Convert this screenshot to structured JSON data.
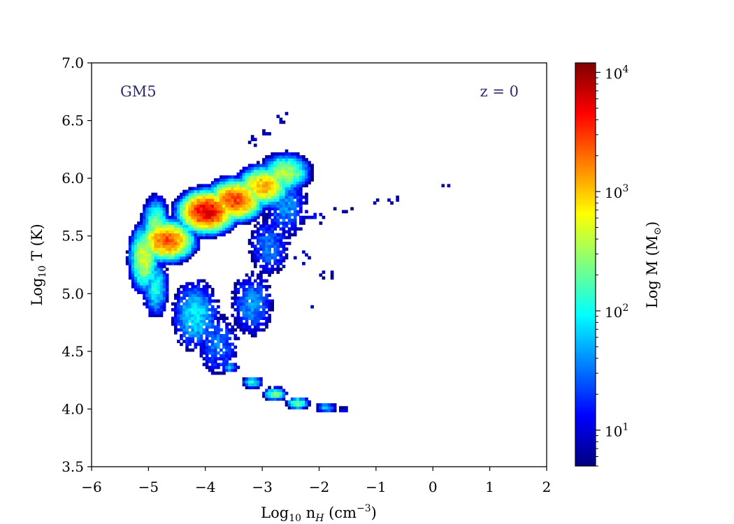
{
  "chart_data": {
    "type": "heatmap",
    "title": "",
    "xlabel": {
      "base": "Log",
      "sub": "10",
      "mid": " n",
      "italic_sub": "H",
      "unit": " (cm",
      "sup": "−3",
      "close": ")"
    },
    "ylabel": {
      "base": "Log",
      "sub": "10",
      "rest": " T (K)"
    },
    "xlim": [
      -6,
      2
    ],
    "ylim": [
      3.5,
      7.0
    ],
    "x_ticks": [
      {
        "value": -6,
        "label": "−6"
      },
      {
        "value": -5,
        "label": "−5"
      },
      {
        "value": -4,
        "label": "−4"
      },
      {
        "value": -3,
        "label": "−3"
      },
      {
        "value": -2,
        "label": "−2"
      },
      {
        "value": -1,
        "label": "−1"
      },
      {
        "value": 0,
        "label": "0"
      },
      {
        "value": 1,
        "label": "1"
      },
      {
        "value": 2,
        "label": "2"
      }
    ],
    "y_ticks": [
      {
        "value": 3.5,
        "label": "3.5"
      },
      {
        "value": 4.0,
        "label": "4.0"
      },
      {
        "value": 4.5,
        "label": "4.5"
      },
      {
        "value": 5.0,
        "label": "5.0"
      },
      {
        "value": 5.5,
        "label": "5.5"
      },
      {
        "value": 6.0,
        "label": "6.0"
      },
      {
        "value": 6.5,
        "label": "6.5"
      },
      {
        "value": 7.0,
        "label": "7.0"
      }
    ],
    "annotations": [
      {
        "text": "GM5",
        "x": -5.45,
        "y": 6.72
      },
      {
        "text": "z = 0",
        "x": 1.5,
        "y": 6.72
      }
    ],
    "grid": false,
    "colormap": [
      "#00007f",
      "#0000ff",
      "#007fff",
      "#00ffff",
      "#7fff7f",
      "#ffff00",
      "#ff7f00",
      "#ff0000",
      "#7f0000"
    ],
    "colorbar": {
      "label": {
        "base": "Log M (M",
        "sub": "⊙",
        "close": ")"
      },
      "scale": "log",
      "range": [
        5,
        12000
      ],
      "ticks": [
        {
          "value": 10,
          "base": "10",
          "exp": "1"
        },
        {
          "value": 100,
          "base": "10",
          "exp": "2"
        },
        {
          "value": 1000,
          "base": "10",
          "exp": "3"
        },
        {
          "value": 10000,
          "base": "10",
          "exp": "4"
        }
      ]
    },
    "bins": {
      "dx": 0.05,
      "dy": 0.025
    },
    "regions": [
      {
        "name": "hot-halo",
        "points": [
          [
            -4.7,
            5.45
          ],
          [
            -4.0,
            5.7
          ],
          [
            -3.5,
            5.8
          ],
          [
            -3.0,
            5.92
          ],
          [
            -2.62,
            6.04
          ]
        ],
        "sigma_x": 0.27,
        "sigma_y": 0.1,
        "peak_log_mass": [
          3.4,
          3.75,
          3.45,
          3.1,
          2.6
        ],
        "sparse": 0.9
      },
      {
        "name": "low-density-arm",
        "points": [
          [
            -5.1,
            5.3
          ],
          [
            -4.9,
            5.05
          ],
          [
            -4.9,
            5.55
          ]
        ],
        "sigma_x": 0.16,
        "sigma_y": 0.18,
        "peak_log_mass": [
          2.7,
          2.0,
          2.4
        ],
        "sparse": 0.8
      },
      {
        "name": "intermediate",
        "points": [
          [
            -4.2,
            4.8
          ],
          [
            -3.8,
            4.55
          ],
          [
            -3.2,
            4.9
          ],
          [
            -2.9,
            5.4
          ],
          [
            -2.6,
            5.75
          ]
        ],
        "sigma_x": 0.3,
        "sigma_y": 0.22,
        "peak_log_mass": [
          1.9,
          1.5,
          1.6,
          1.5,
          1.6
        ],
        "sparse": 0.55
      },
      {
        "name": "cool-tail",
        "points": [
          [
            -3.6,
            4.35
          ],
          [
            -3.2,
            4.22
          ],
          [
            -2.8,
            4.12
          ],
          [
            -2.4,
            4.04
          ],
          [
            -1.9,
            4.0
          ],
          [
            -1.6,
            3.98
          ]
        ],
        "sigma_x": 0.13,
        "sigma_y": 0.035,
        "peak_log_mass": [
          1.7,
          2.0,
          2.4,
          2.3,
          1.8,
          1.0
        ],
        "sparse": 0.85
      },
      {
        "name": "shocked-scatter",
        "points": [
          [
            -2.1,
            5.65
          ],
          [
            -1.6,
            5.72
          ],
          [
            -1.0,
            5.78
          ],
          [
            -0.7,
            5.8
          ],
          [
            -2.3,
            5.3
          ],
          [
            -1.9,
            5.15
          ],
          [
            -2.2,
            4.9
          ]
        ],
        "sigma_x": 0.25,
        "sigma_y": 0.08,
        "peak_log_mass": [
          1.1,
          0.9,
          0.85,
          0.8,
          0.95,
          0.85,
          0.8
        ],
        "sparse": 0.22
      },
      {
        "name": "isolated-hot",
        "points": [
          [
            0.15,
            5.92
          ],
          [
            0.25,
            5.92
          ]
        ],
        "sigma_x": 0.04,
        "sigma_y": 0.015,
        "peak_log_mass": [
          0.8,
          0.8
        ],
        "sparse": 1.0
      },
      {
        "name": "hot-peak",
        "points": [
          [
            -3.2,
            6.3
          ],
          [
            -2.95,
            6.4
          ],
          [
            -2.7,
            6.5
          ],
          [
            -2.62,
            6.55
          ]
        ],
        "sigma_x": 0.12,
        "sigma_y": 0.07,
        "peak_log_mass": [
          1.0,
          1.0,
          0.9,
          0.85
        ],
        "sparse": 0.35
      }
    ]
  }
}
